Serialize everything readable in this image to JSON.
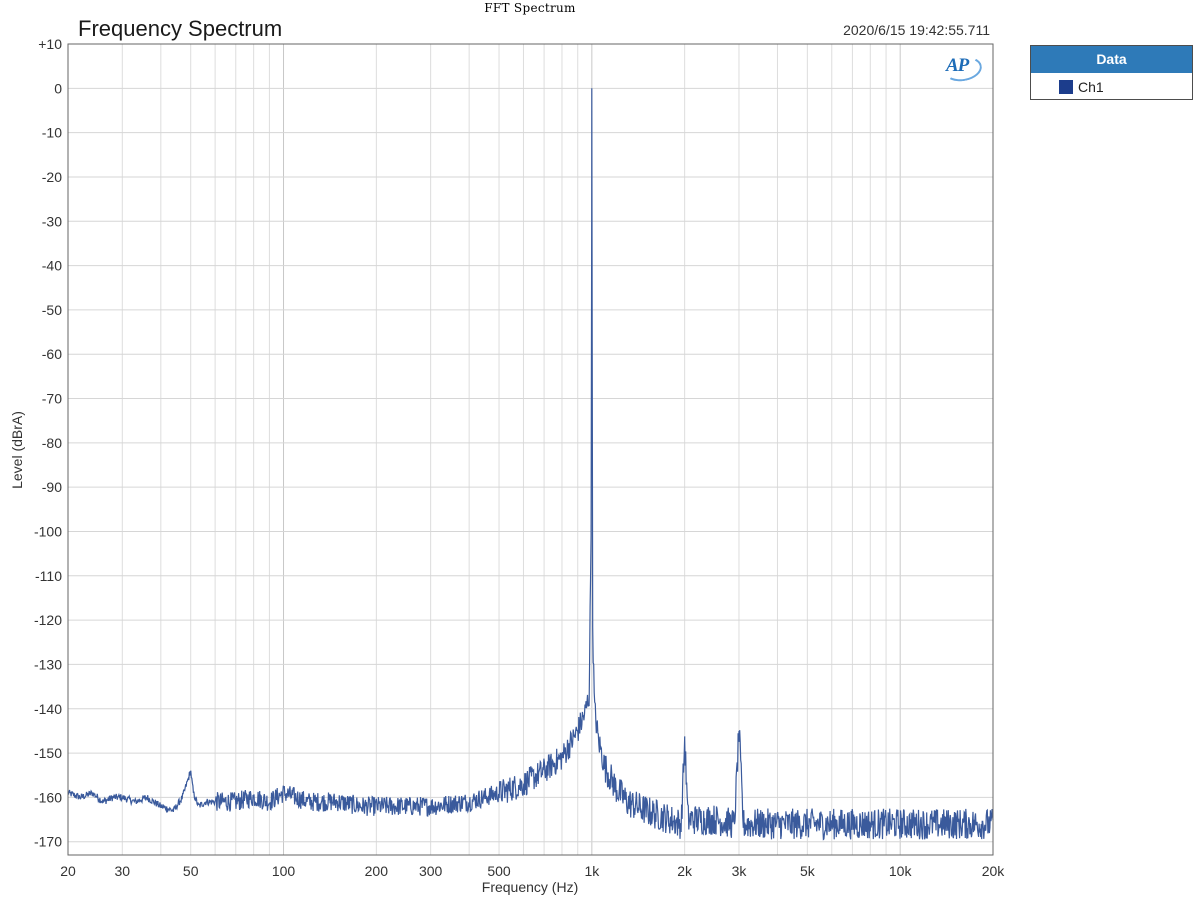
{
  "window_title": "FFT Spectrum",
  "chart": {
    "title": "Frequency Spectrum",
    "timestamp": "2020/6/15 19:42:55.711",
    "ylabel": "Level (dBrA)",
    "xlabel": "Frequency (Hz)",
    "logo_text": "AP"
  },
  "legend": {
    "header": "Data",
    "items": [
      {
        "label": "Ch1",
        "color": "#1c3d8c"
      }
    ]
  },
  "chart_data": {
    "type": "line",
    "title": "Frequency Spectrum",
    "xlabel": "Frequency (Hz)",
    "ylabel": "Level (dBrA)",
    "x_scale": "log",
    "xlim": [
      20,
      20000
    ],
    "ylim": [
      -173,
      10
    ],
    "grid": true,
    "legend_placement": "outside-top-right",
    "x_ticks": [
      20,
      30,
      50,
      100,
      200,
      300,
      500,
      1000,
      2000,
      3000,
      5000,
      10000,
      20000
    ],
    "x_tick_labels": [
      "20",
      "30",
      "50",
      "100",
      "200",
      "300",
      "500",
      "1k",
      "2k",
      "3k",
      "5k",
      "10k",
      "20k"
    ],
    "y_ticks": [
      10,
      0,
      -10,
      -20,
      -30,
      -40,
      -50,
      -60,
      -70,
      -80,
      -90,
      -100,
      -110,
      -120,
      -130,
      -140,
      -150,
      -160,
      -170
    ],
    "y_tick_labels": [
      "+10",
      "0",
      "-10",
      "-20",
      "-30",
      "-40",
      "-50",
      "-60",
      "-70",
      "-80",
      "-90",
      "-100",
      "-110",
      "-120",
      "-130",
      "-140",
      "-150",
      "-160",
      "-170"
    ],
    "series": [
      {
        "name": "Ch1",
        "color": "#3a5a9c",
        "x": [
          20,
          22,
          24,
          26,
          28,
          30,
          33,
          36,
          40,
          44,
          47,
          49,
          50,
          51,
          53,
          56,
          60,
          70,
          80,
          90,
          100,
          120,
          150,
          180,
          200,
          250,
          300,
          400,
          500,
          600,
          700,
          800,
          850,
          900,
          950,
          980,
          995,
          1000,
          1005,
          1020,
          1050,
          1100,
          1200,
          1300,
          1500,
          1800,
          1950,
          2000,
          2050,
          2500,
          2900,
          3000,
          3100,
          4000,
          5000,
          7000,
          8000,
          10000,
          15000,
          20000
        ],
        "y": [
          -159,
          -160,
          -159,
          -161,
          -160,
          -160,
          -161,
          -160,
          -162,
          -163,
          -160,
          -156,
          -154,
          -159,
          -162,
          -161,
          -161,
          -161,
          -160,
          -161,
          -159,
          -161,
          -161,
          -162,
          -162,
          -162,
          -162,
          -161,
          -159,
          -157,
          -154,
          -151,
          -148,
          -145,
          -141,
          -137,
          -100,
          0,
          -120,
          -140,
          -147,
          -153,
          -158,
          -161,
          -163,
          -165,
          -166,
          -147,
          -165,
          -165,
          -166,
          -145,
          -166,
          -166,
          -166,
          -166,
          -166,
          -166,
          -166,
          -166
        ]
      }
    ]
  }
}
